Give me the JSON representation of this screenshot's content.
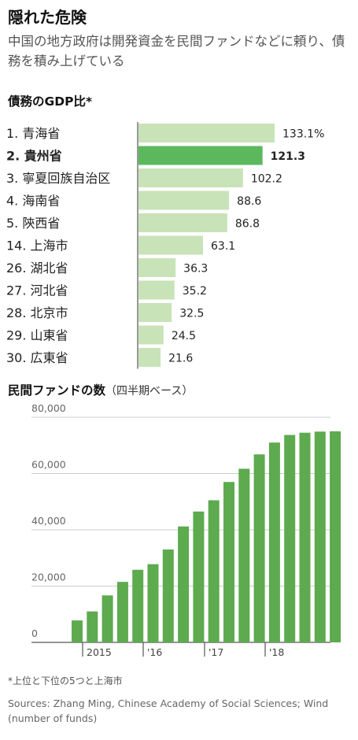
{
  "header": {
    "title": "隠れた危険",
    "subtitle": "中国の地方政府は開発資金を民間ファンドなどに頼り、債務を積み上げている"
  },
  "colors": {
    "bar_light": "#c8e3b8",
    "bar_highlight": "#5cb85c",
    "bar_fund": "#5daa4f",
    "axis": "#555555",
    "grid": "#cccccc"
  },
  "chart_data": [
    {
      "type": "bar",
      "orientation": "horizontal",
      "title": "債務のGDP比*",
      "categories": [
        "1. 青海省",
        "2. 貴州省",
        "3. 寧夏回族自治区",
        "4. 海南省",
        "5. 陝西省",
        "14. 上海市",
        "26. 湖北省",
        "27. 河北省",
        "28. 北京市",
        "29. 山東省",
        "30. 広東省"
      ],
      "values": [
        133.1,
        121.3,
        102.2,
        88.6,
        86.8,
        63.1,
        36.3,
        35.2,
        32.5,
        24.5,
        21.6
      ],
      "value_labels": [
        "133.1%",
        "121.3",
        "102.2",
        "88.6",
        "86.8",
        "63.1",
        "36.3",
        "35.2",
        "32.5",
        "24.5",
        "21.6"
      ],
      "highlight_index": 1,
      "xlim": [
        0,
        133.1
      ],
      "grid": false
    },
    {
      "type": "bar",
      "title": "民間ファンドの数",
      "title_note": "（四半期ベース）",
      "x": [
        "2014Q3",
        "2014Q4",
        "2015Q1",
        "2015Q2",
        "2015Q3",
        "2015Q4",
        "2016Q1",
        "2016Q2",
        "2016Q3",
        "2016Q4",
        "2017Q1",
        "2017Q2",
        "2017Q3",
        "2017Q4",
        "2018Q1",
        "2018Q2",
        "2018Q3",
        "2018Q4"
      ],
      "values": [
        7800,
        11000,
        16700,
        21500,
        25800,
        27800,
        33000,
        41200,
        46500,
        50500,
        57000,
        61700,
        66800,
        71000,
        73700,
        74500,
        74900,
        75000
      ],
      "year_labels": [
        "2015",
        "'16",
        "'17",
        "'18"
      ],
      "y_ticks": [
        0,
        20000,
        40000,
        60000,
        80000
      ],
      "y_tick_labels": [
        "0",
        "20,000",
        "40,000",
        "60,000",
        "80,000"
      ],
      "ylim": [
        0,
        80000
      ],
      "grid": true
    }
  ],
  "footnote": "*上位と下位の5つと上海市",
  "sources": "Sources: Zhang Ming, Chinese Academy of Social Sciences; Wind (number of funds)"
}
